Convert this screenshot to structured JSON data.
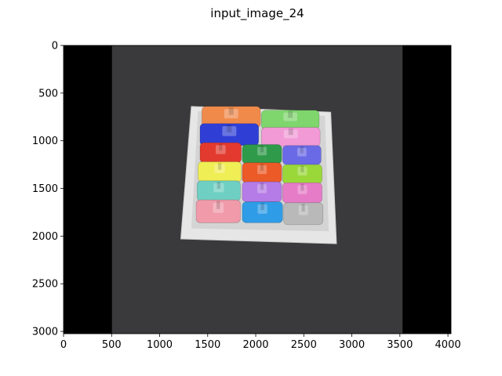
{
  "chart_data": {
    "type": "image",
    "title": "input_image_24",
    "xlabel": "",
    "ylabel": "",
    "xlim": [
      0,
      4032
    ],
    "ylim": [
      3024,
      0
    ],
    "xticks": [
      0,
      500,
      1000,
      1500,
      2000,
      2500,
      3000,
      3500,
      4000
    ],
    "yticks": [
      0,
      500,
      1000,
      1500,
      2000,
      2500,
      3000
    ],
    "grid": false,
    "image": {
      "description_colors": {
        "black_border": "#000000",
        "background": "#3a3a3c",
        "tray": "#e6e6e6",
        "tray_edge": "#c9c9c9"
      },
      "pieces": [
        {
          "name": "orange-car",
          "color": "#f08a4b",
          "x0": 1440,
          "x1": 2050,
          "y0": 640,
          "y1": 860
        },
        {
          "name": "green-car",
          "color": "#7ed66c",
          "x0": 2060,
          "x1": 2660,
          "y0": 680,
          "y1": 880
        },
        {
          "name": "blue-car",
          "color": "#2f3fd6",
          "x0": 1420,
          "x1": 2030,
          "y0": 820,
          "y1": 1050
        },
        {
          "name": "pink-car",
          "color": "#f29ad6",
          "x0": 2060,
          "x1": 2670,
          "y0": 860,
          "y1": 1060
        },
        {
          "name": "red-car",
          "color": "#e23a2e",
          "x0": 1420,
          "x1": 1850,
          "y0": 1020,
          "y1": 1230
        },
        {
          "name": "green-dark-car",
          "color": "#2e9a4a",
          "x0": 1860,
          "x1": 2270,
          "y0": 1040,
          "y1": 1240
        },
        {
          "name": "purple-blue-car",
          "color": "#6a6ae6",
          "x0": 2280,
          "x1": 2680,
          "y0": 1050,
          "y1": 1250
        },
        {
          "name": "yellow-car",
          "color": "#f0ee55",
          "x0": 1400,
          "x1": 1850,
          "y0": 1220,
          "y1": 1430
        },
        {
          "name": "orange-red-car",
          "color": "#ec5a28",
          "x0": 1860,
          "x1": 2270,
          "y0": 1230,
          "y1": 1440
        },
        {
          "name": "lime-car",
          "color": "#9ad83a",
          "x0": 2280,
          "x1": 2690,
          "y0": 1250,
          "y1": 1450
        },
        {
          "name": "teal-car",
          "color": "#6fcfc3",
          "x0": 1390,
          "x1": 1840,
          "y0": 1420,
          "y1": 1630
        },
        {
          "name": "violet-car",
          "color": "#b57be6",
          "x0": 1860,
          "x1": 2270,
          "y0": 1430,
          "y1": 1640
        },
        {
          "name": "magenta-car",
          "color": "#e67cc8",
          "x0": 2280,
          "x1": 2690,
          "y0": 1440,
          "y1": 1650
        },
        {
          "name": "light-pink-car",
          "color": "#f09aaa",
          "x0": 1380,
          "x1": 1840,
          "y0": 1620,
          "y1": 1860
        },
        {
          "name": "sky-blue-car",
          "color": "#2e9ce6",
          "x0": 1860,
          "x1": 2280,
          "y0": 1640,
          "y1": 1860
        },
        {
          "name": "gray-car",
          "color": "#b9b9b9",
          "x0": 2290,
          "x1": 2700,
          "y0": 1650,
          "y1": 1880
        }
      ]
    }
  }
}
